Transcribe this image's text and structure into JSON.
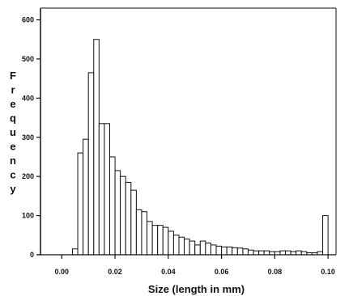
{
  "chart_data": {
    "type": "bar",
    "title": "",
    "xlabel": "Size (length in mm)",
    "ylabel": "Frequency",
    "x_ticks": [
      "0.00",
      "0.02",
      "0.04",
      "0.06",
      "0.08",
      "0.10"
    ],
    "x_tick_values": [
      0.0,
      0.02,
      0.04,
      0.06,
      0.08,
      0.1
    ],
    "y_ticks": [
      "0",
      "100",
      "200",
      "300",
      "400",
      "500",
      "600"
    ],
    "y_tick_values": [
      0,
      100,
      200,
      300,
      400,
      500,
      600
    ],
    "xlim": [
      -0.008,
      0.103
    ],
    "ylim": [
      0,
      630
    ],
    "grid": false,
    "bin_width": 0.002,
    "bin_starts": [
      0.004,
      0.006,
      0.008,
      0.01,
      0.012,
      0.014,
      0.016,
      0.018,
      0.02,
      0.022,
      0.024,
      0.026,
      0.028,
      0.03,
      0.032,
      0.034,
      0.036,
      0.038,
      0.04,
      0.042,
      0.044,
      0.046,
      0.048,
      0.05,
      0.052,
      0.054,
      0.056,
      0.058,
      0.06,
      0.062,
      0.064,
      0.066,
      0.068,
      0.07,
      0.072,
      0.074,
      0.076,
      0.078,
      0.08,
      0.082,
      0.084,
      0.086,
      0.088,
      0.09,
      0.092,
      0.094,
      0.096,
      0.098
    ],
    "values": [
      15,
      260,
      295,
      465,
      550,
      335,
      335,
      250,
      215,
      200,
      185,
      165,
      115,
      110,
      85,
      75,
      75,
      70,
      60,
      50,
      45,
      40,
      35,
      25,
      35,
      30,
      25,
      22,
      20,
      20,
      18,
      17,
      15,
      12,
      10,
      10,
      10,
      8,
      8,
      10,
      10,
      8,
      10,
      8,
      5,
      5,
      8,
      100
    ]
  }
}
